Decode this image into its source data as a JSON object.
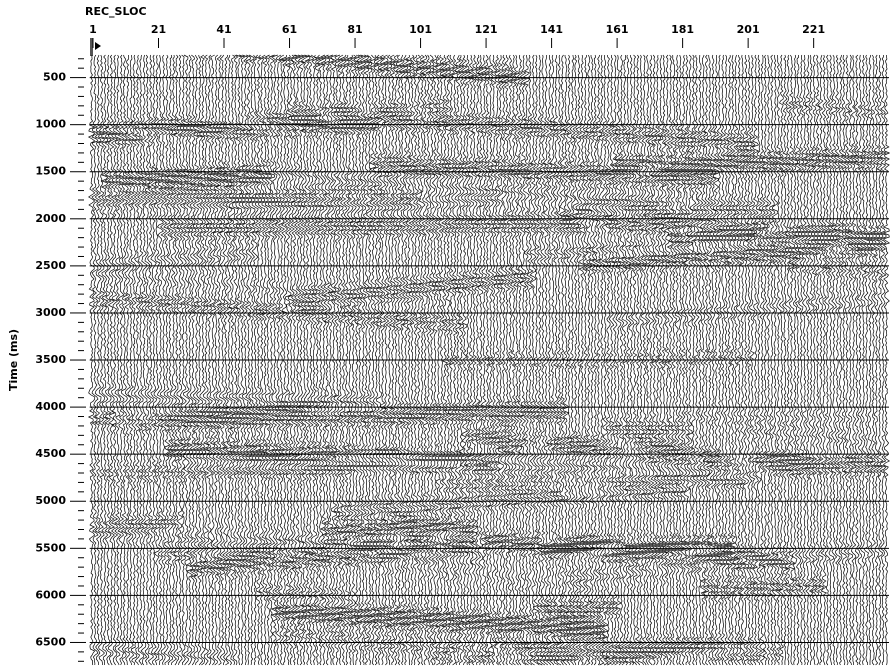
{
  "chart_data": {
    "type": "seismic",
    "x_label": "REC_SLOC",
    "y_label": "Time (ms)",
    "xlim": [
      0,
      244
    ],
    "xticks": [
      1,
      21,
      41,
      61,
      81,
      101,
      121,
      141,
      161,
      181,
      201,
      221
    ],
    "ylim": [
      260,
      6750
    ],
    "yticks": [
      500,
      1000,
      1500,
      2000,
      2500,
      3000,
      3500,
      4000,
      4500,
      5000,
      5500,
      6000,
      6500
    ],
    "y_minor_step": 100,
    "grid": true
  }
}
